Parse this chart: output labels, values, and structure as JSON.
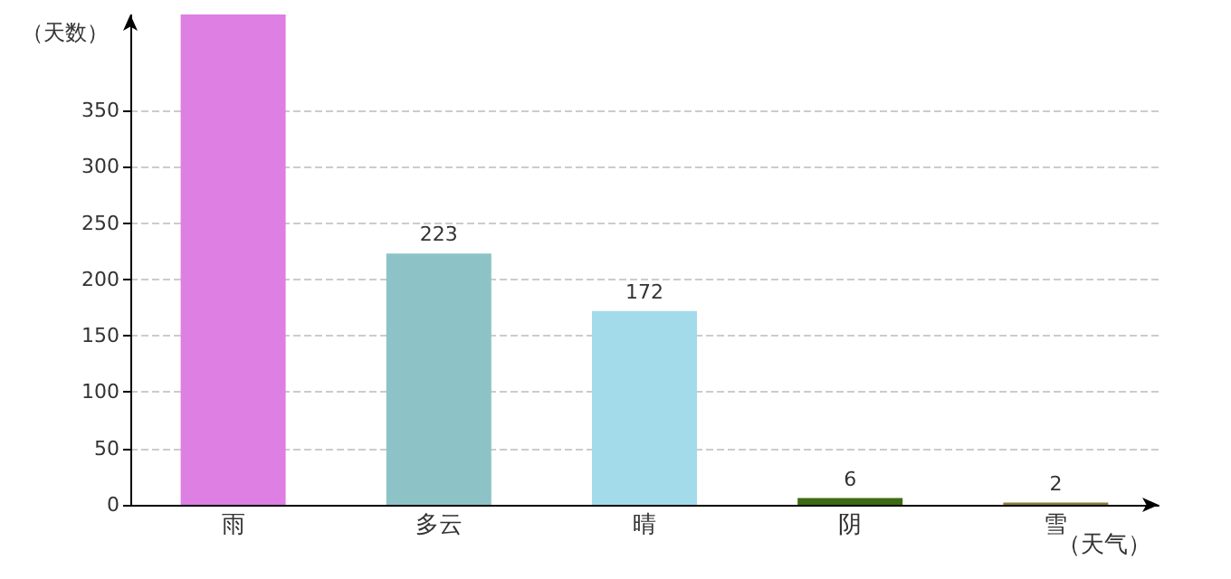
{
  "chart_data": {
    "type": "bar",
    "ylabel": "（天数）",
    "xlabel": "（天气）",
    "categories": [
      "雨",
      "多云",
      "晴",
      "阴",
      "雪"
    ],
    "values": [
      435,
      223,
      172,
      6,
      2
    ],
    "colors": [
      "#dd7fe3",
      "#8dc3c6",
      "#a3dbeb",
      "#3e6a12",
      "#8a7f3a"
    ],
    "value_labels": [
      null,
      "223",
      "172",
      "6",
      "2"
    ],
    "ylim": [
      0,
      435
    ],
    "yticks": [
      0,
      50,
      100,
      150,
      200,
      250,
      300,
      350
    ],
    "grid": "y"
  }
}
